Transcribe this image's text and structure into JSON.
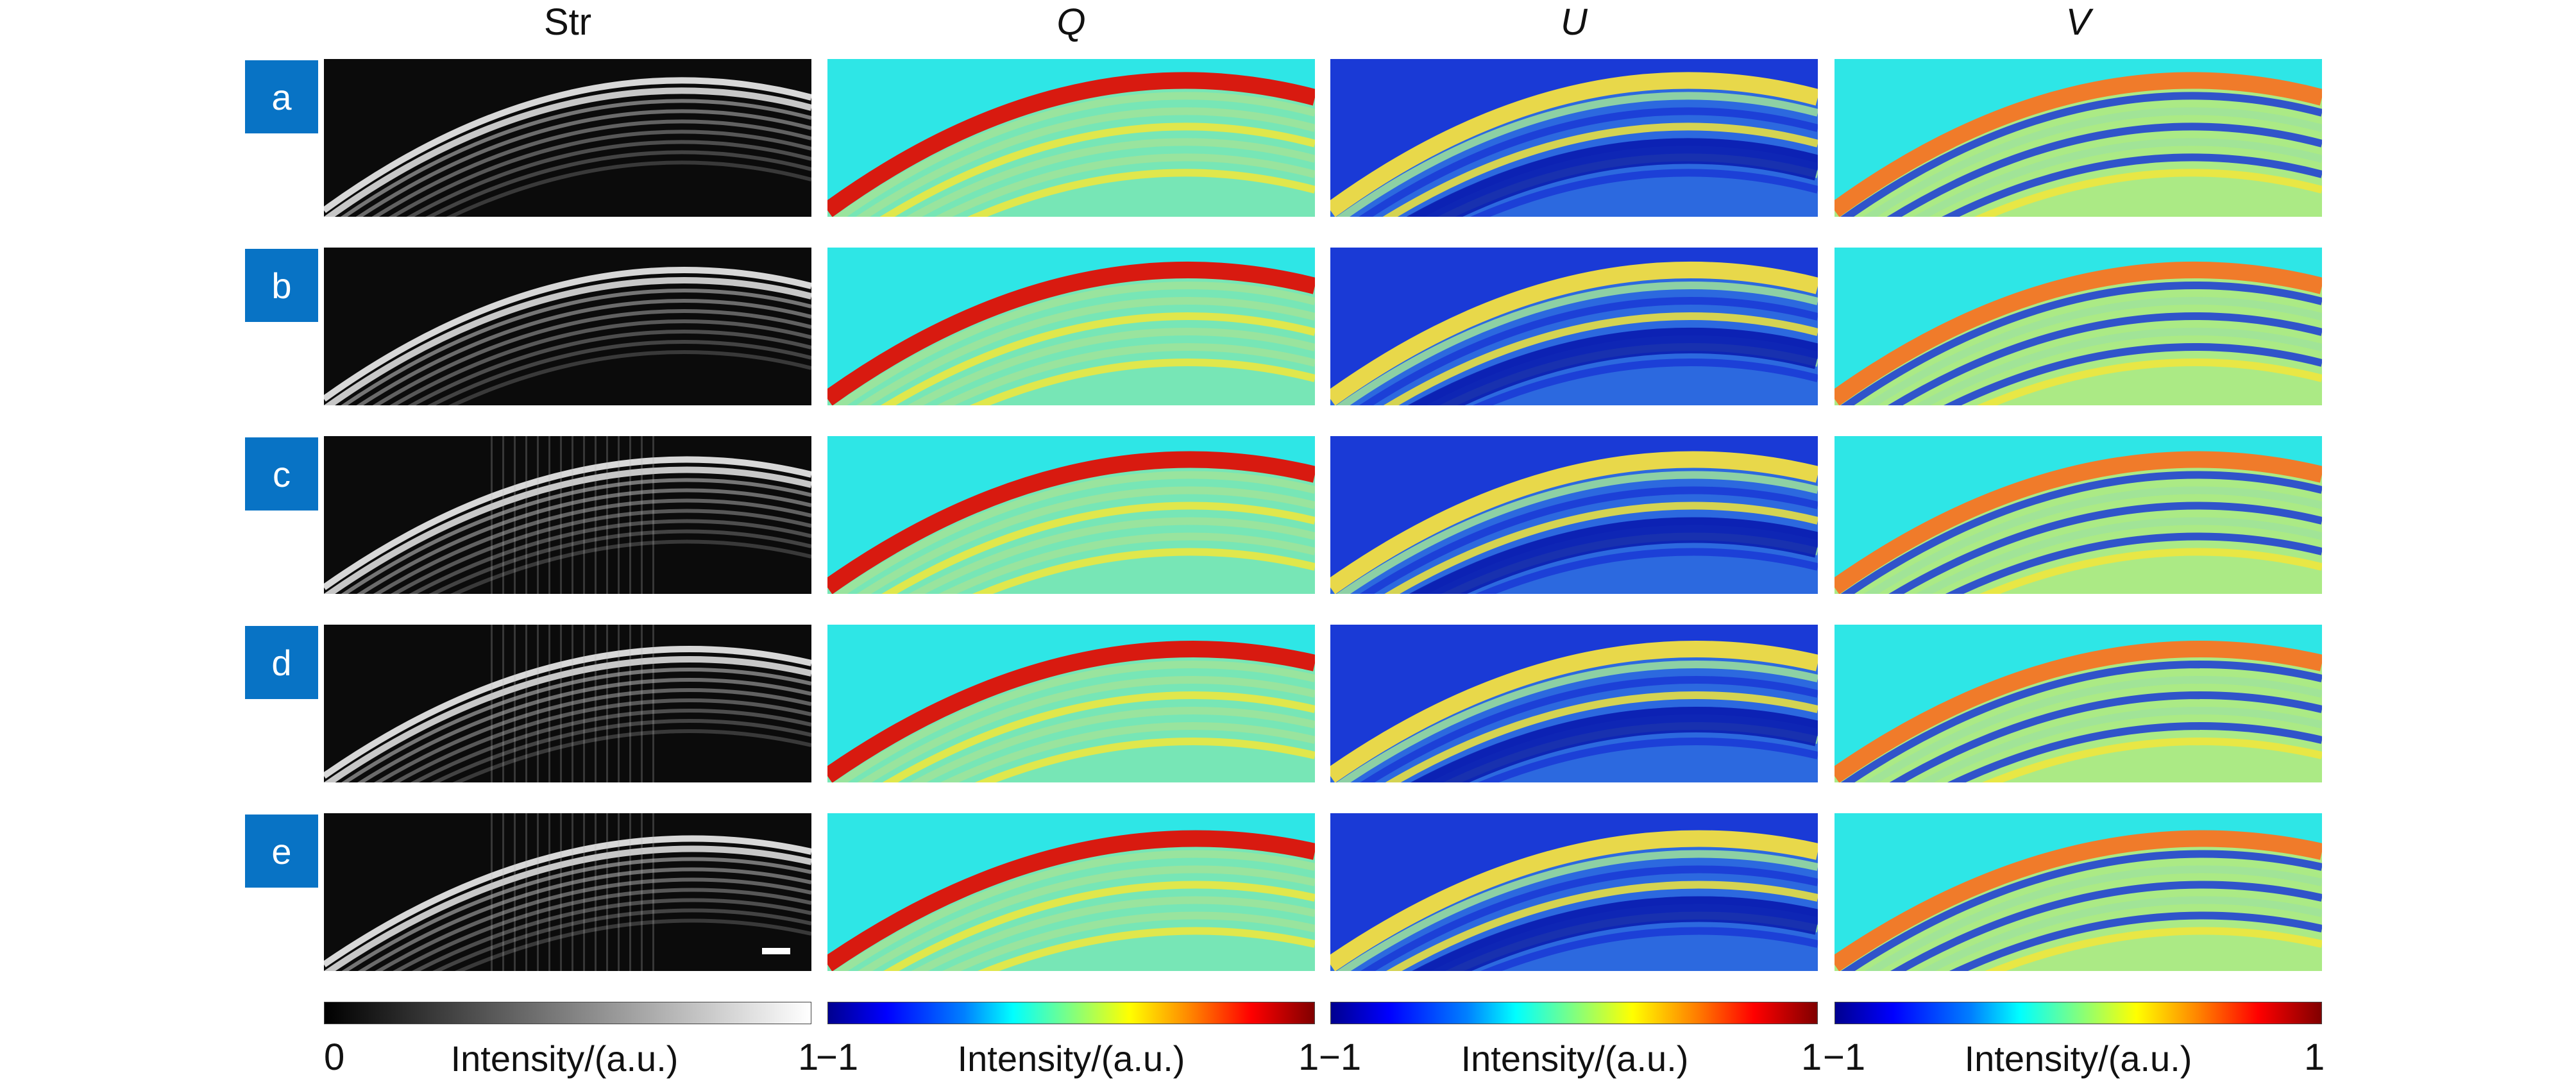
{
  "columns": {
    "str": "Str",
    "q": "Q",
    "u": "U",
    "v": "V"
  },
  "rows": [
    "a",
    "b",
    "c",
    "d",
    "e"
  ],
  "colorbars": [
    {
      "left_tick": "0",
      "title": "Intensity/(a.u.)",
      "right_tick": "1"
    },
    {
      "left_tick": "−1",
      "title": "Intensity/(a.u.)",
      "right_tick": "1"
    },
    {
      "left_tick": "−1",
      "title": "Intensity/(a.u.)",
      "right_tick": "1"
    },
    {
      "left_tick": "−1",
      "title": "Intensity/(a.u.)",
      "right_tick": "1"
    }
  ],
  "colors": {
    "label_bg": "#0873c5",
    "jet_cyan": "#2ee6e6",
    "jet_blue": "#1a3ad6",
    "jet_red": "#d81a10",
    "jet_yellow": "#f2e63a"
  }
}
